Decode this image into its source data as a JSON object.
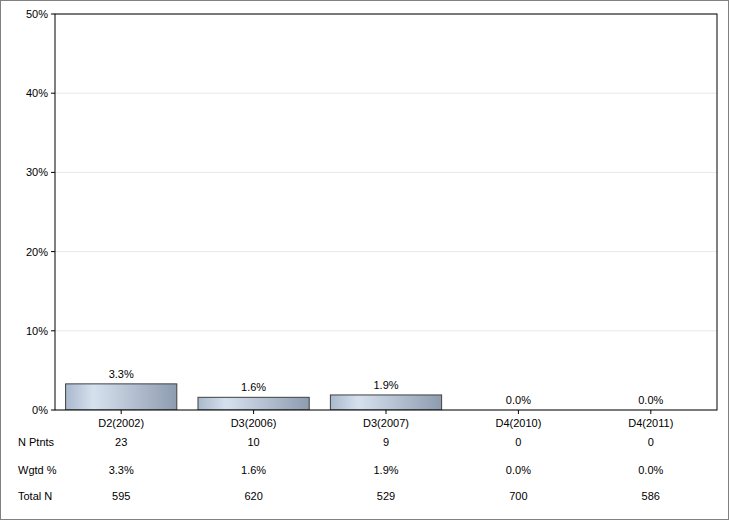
{
  "chart_data": {
    "type": "bar",
    "categories": [
      "D2(2002)",
      "D3(2006)",
      "D3(2007)",
      "D4(2010)",
      "D4(2011)"
    ],
    "values": [
      3.3,
      1.6,
      1.9,
      0.0,
      0.0
    ],
    "value_labels": [
      "3.3%",
      "1.6%",
      "1.9%",
      "0.0%",
      "0.0%"
    ],
    "data_labels": true,
    "color": "#8e9cb0",
    "ylim": [
      0,
      50
    ],
    "yticks": [
      {
        "value": 0,
        "label": "0%"
      },
      {
        "value": 10,
        "label": "10%"
      },
      {
        "value": 20,
        "label": "20%"
      },
      {
        "value": 30,
        "label": "30%"
      },
      {
        "value": 40,
        "label": "40%"
      },
      {
        "value": 50,
        "label": "50%"
      }
    ],
    "grid": true,
    "table": [
      {
        "label": "N Ptnts",
        "values": [
          23,
          10,
          9,
          0,
          0
        ]
      },
      {
        "label": "Wgtd %",
        "values": [
          "3.3%",
          "1.6%",
          "1.9%",
          "0.0%",
          "0.0%"
        ]
      },
      {
        "label": "Total N",
        "values": [
          595,
          620,
          529,
          700,
          586
        ]
      }
    ]
  }
}
